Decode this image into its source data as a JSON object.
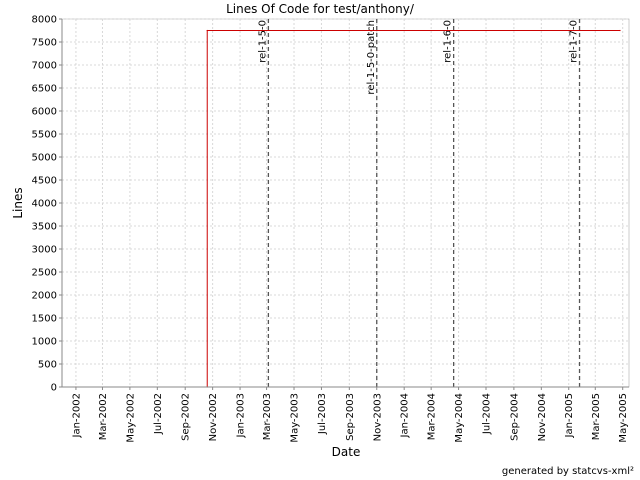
{
  "chart_data": {
    "type": "line",
    "title": "Lines Of Code for test/anthony/",
    "xlabel": "Date",
    "ylabel": "Lines",
    "ylim": [
      0,
      8000
    ],
    "y_ticks": [
      0,
      500,
      1000,
      1500,
      2000,
      2500,
      3000,
      3500,
      4000,
      4500,
      5000,
      5500,
      6000,
      6500,
      7000,
      7500,
      8000
    ],
    "x_range": [
      "2001-12-01",
      "2005-05-15"
    ],
    "x_ticks": [
      {
        "date": "2002-01-01",
        "label": "Jan-2002"
      },
      {
        "date": "2002-03-01",
        "label": "Mar-2002"
      },
      {
        "date": "2002-05-01",
        "label": "May-2002"
      },
      {
        "date": "2002-07-01",
        "label": "Jul-2002"
      },
      {
        "date": "2002-09-01",
        "label": "Sep-2002"
      },
      {
        "date": "2002-11-01",
        "label": "Nov-2002"
      },
      {
        "date": "2003-01-01",
        "label": "Jan-2003"
      },
      {
        "date": "2003-03-01",
        "label": "Mar-2003"
      },
      {
        "date": "2003-05-01",
        "label": "May-2003"
      },
      {
        "date": "2003-07-01",
        "label": "Jul-2003"
      },
      {
        "date": "2003-09-01",
        "label": "Sep-2003"
      },
      {
        "date": "2003-11-01",
        "label": "Nov-2003"
      },
      {
        "date": "2004-01-01",
        "label": "Jan-2004"
      },
      {
        "date": "2004-03-01",
        "label": "Mar-2004"
      },
      {
        "date": "2004-05-01",
        "label": "May-2004"
      },
      {
        "date": "2004-07-01",
        "label": "Jul-2004"
      },
      {
        "date": "2004-09-01",
        "label": "Sep-2004"
      },
      {
        "date": "2004-11-01",
        "label": "Nov-2004"
      },
      {
        "date": "2005-01-01",
        "label": "Jan-2005"
      },
      {
        "date": "2005-03-01",
        "label": "Mar-2005"
      },
      {
        "date": "2005-05-01",
        "label": "May-2005"
      }
    ],
    "series": [
      {
        "color": "#cc0000",
        "step": true,
        "points": [
          {
            "x": "2002-01-01",
            "y": 0
          },
          {
            "x": "2002-10-20",
            "y": 0
          },
          {
            "x": "2002-10-20",
            "y": 7750
          },
          {
            "x": "2005-04-25",
            "y": 7750
          }
        ]
      }
    ],
    "annotations": [
      {
        "date": "2003-03-05",
        "label": "rel-1-5-0"
      },
      {
        "date": "2003-11-01",
        "label": "rel-1-5-0-patch"
      },
      {
        "date": "2004-04-20",
        "label": "rel-1-6-0"
      },
      {
        "date": "2005-01-25",
        "label": "rel-1-7-0"
      }
    ],
    "grid": true,
    "legend": "none",
    "colors": {
      "line": "#cc0000",
      "marker": "#555555",
      "grid": "#d8d8d8"
    }
  },
  "footer": "generated by statcvs-xml²"
}
